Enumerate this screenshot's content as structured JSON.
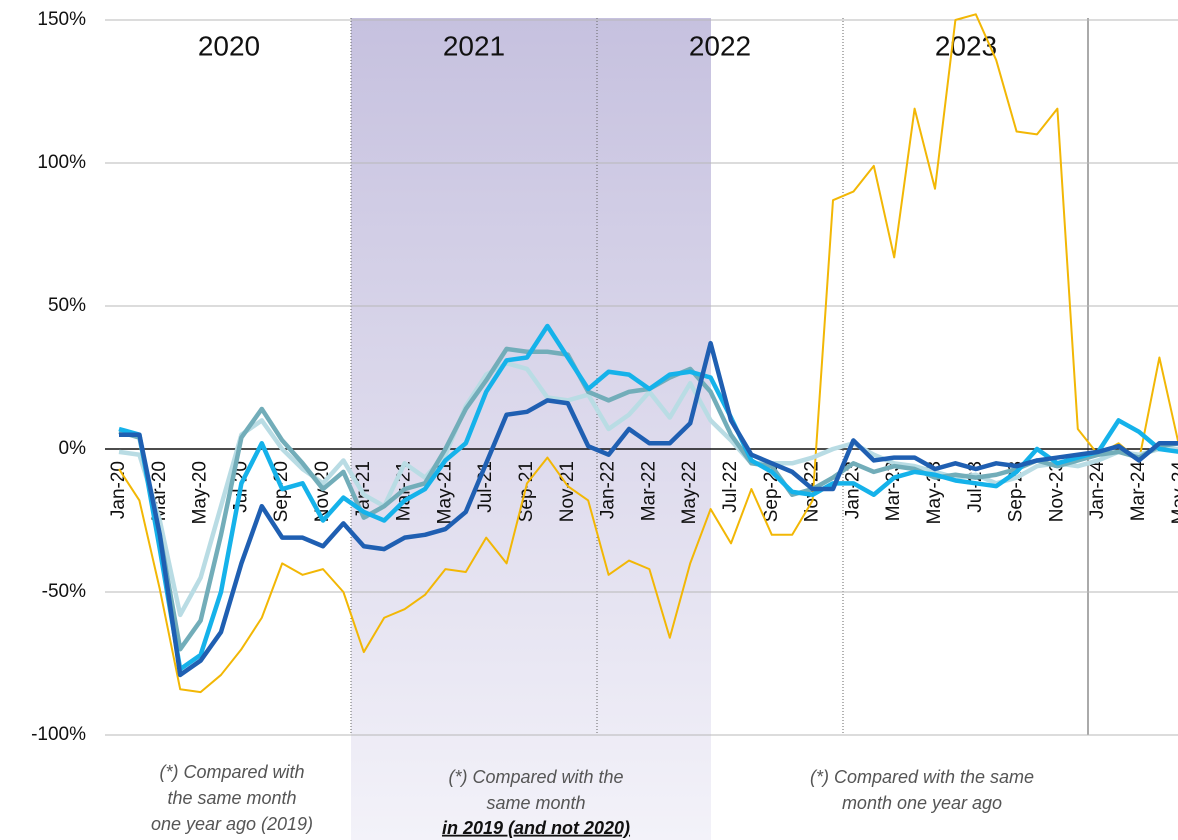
{
  "chart_data": {
    "type": "line",
    "categories": [
      "Jan-20",
      null,
      "Mar-20",
      null,
      "May-20",
      null,
      "Jul-20",
      null,
      "Sep-20",
      null,
      "Nov-20",
      null,
      "Jan-21",
      null,
      "Mar-21",
      null,
      "May-21",
      null,
      "Jul-21",
      null,
      "Sep-21",
      null,
      "Nov-21",
      null,
      "Jan-22",
      null,
      "Mar-22",
      null,
      "May-22",
      null,
      "Jul-22",
      null,
      "Sep-22",
      null,
      "Nov-22",
      null,
      "Jan-23",
      null,
      "Mar-23",
      null,
      "May-23",
      null,
      "Jul-23",
      null,
      "Sep-23",
      null,
      "Nov-23",
      null,
      "Jan-24",
      null,
      "Mar-24",
      null,
      "May-24"
    ],
    "series": [
      {
        "color": "#f2b705",
        "values": [
          -7,
          -18,
          -49,
          -84,
          -85,
          -79,
          -70,
          -59,
          -40,
          -44,
          -42,
          -50,
          -71,
          -59,
          -56,
          -51,
          -42,
          -43,
          -31,
          -40,
          -12,
          -3,
          -13,
          -18,
          -44,
          -39,
          -42,
          -66,
          -40,
          -21,
          -33,
          -14,
          -30,
          -30,
          -18,
          87,
          90,
          99,
          67,
          119,
          91,
          150,
          152,
          136,
          111,
          110,
          119,
          7,
          -2,
          2,
          -4,
          32,
          0
        ]
      },
      {
        "color": "#b9dce4",
        "values": [
          -1,
          -2,
          -25,
          -58,
          -45,
          -20,
          5,
          10,
          0,
          -7,
          -12,
          -4,
          -16,
          -20,
          -5,
          -10,
          -2,
          15,
          26,
          30,
          28,
          18,
          17,
          19,
          7,
          12,
          20,
          11,
          23,
          10,
          3,
          -5,
          -5,
          -5,
          -3,
          0,
          2,
          -2,
          -5,
          -6,
          -8,
          -10,
          -9,
          -12,
          -10,
          -6,
          -5,
          -6,
          -4,
          -1,
          -2,
          0,
          0
        ]
      },
      {
        "color": "#72adb9",
        "values": [
          6,
          4,
          -30,
          -70,
          -60,
          -30,
          4,
          14,
          3,
          -5,
          -14,
          -8,
          -24,
          -20,
          -14,
          -12,
          0,
          14,
          24,
          35,
          34,
          34,
          33,
          20,
          17,
          20,
          21,
          25,
          28,
          20,
          5,
          -5,
          -6,
          -16,
          -14,
          -10,
          -5,
          -8,
          -6,
          -7,
          -10,
          -9,
          -10,
          -9,
          -7,
          -4,
          -6,
          -4,
          -2,
          -1,
          -3,
          1,
          2
        ]
      },
      {
        "color": "#15b2ea",
        "values": [
          7,
          5,
          -35,
          -77,
          -72,
          -50,
          -12,
          2,
          -14,
          -12,
          -25,
          -17,
          -22,
          -25,
          -18,
          -14,
          -4,
          2,
          20,
          31,
          32,
          43,
          32,
          21,
          27,
          26,
          21,
          26,
          27,
          25,
          11,
          -4,
          -8,
          -15,
          -16,
          -12,
          -12,
          -16,
          -10,
          -8,
          -9,
          -11,
          -12,
          -13,
          -8,
          0,
          -5,
          -3,
          -1,
          10,
          6,
          0,
          -1
        ]
      },
      {
        "color": "#1f5fb2",
        "values": [
          5,
          5,
          -30,
          -79,
          -74,
          -64,
          -40,
          -20,
          -31,
          -31,
          -34,
          -26,
          -34,
          -35,
          -31,
          -30,
          -28,
          -22,
          -5,
          12,
          13,
          17,
          16,
          1,
          -2,
          7,
          2,
          2,
          9,
          37,
          10,
          -2,
          -5,
          -8,
          -14,
          -14,
          3,
          -4,
          -3,
          -3,
          -7,
          -5,
          -7,
          -5,
          -6,
          -4,
          -3,
          -2,
          -1,
          1,
          -4,
          2,
          2
        ]
      }
    ],
    "ylim": [
      -100,
      150
    ],
    "yticks": [
      {
        "value": 150,
        "label": "150%"
      },
      {
        "value": 100,
        "label": "100%"
      },
      {
        "value": 50,
        "label": "50%"
      },
      {
        "value": 0,
        "label": "0%"
      },
      {
        "value": -50,
        "label": "-50%"
      },
      {
        "value": -100,
        "label": "-100%"
      }
    ],
    "grid": true,
    "year_labels": [
      "2020",
      "2021",
      "2022",
      "2023"
    ],
    "notes": {
      "left": [
        "(*) Compared with",
        "the same month",
        "one year ago (2019)"
      ],
      "middle": [
        "(*) Compared with the",
        "same month"
      ],
      "middle_emphasis": "in 2019 (and not 2020)",
      "right": [
        "(*) Compared with the same",
        "month one year ago"
      ]
    }
  }
}
